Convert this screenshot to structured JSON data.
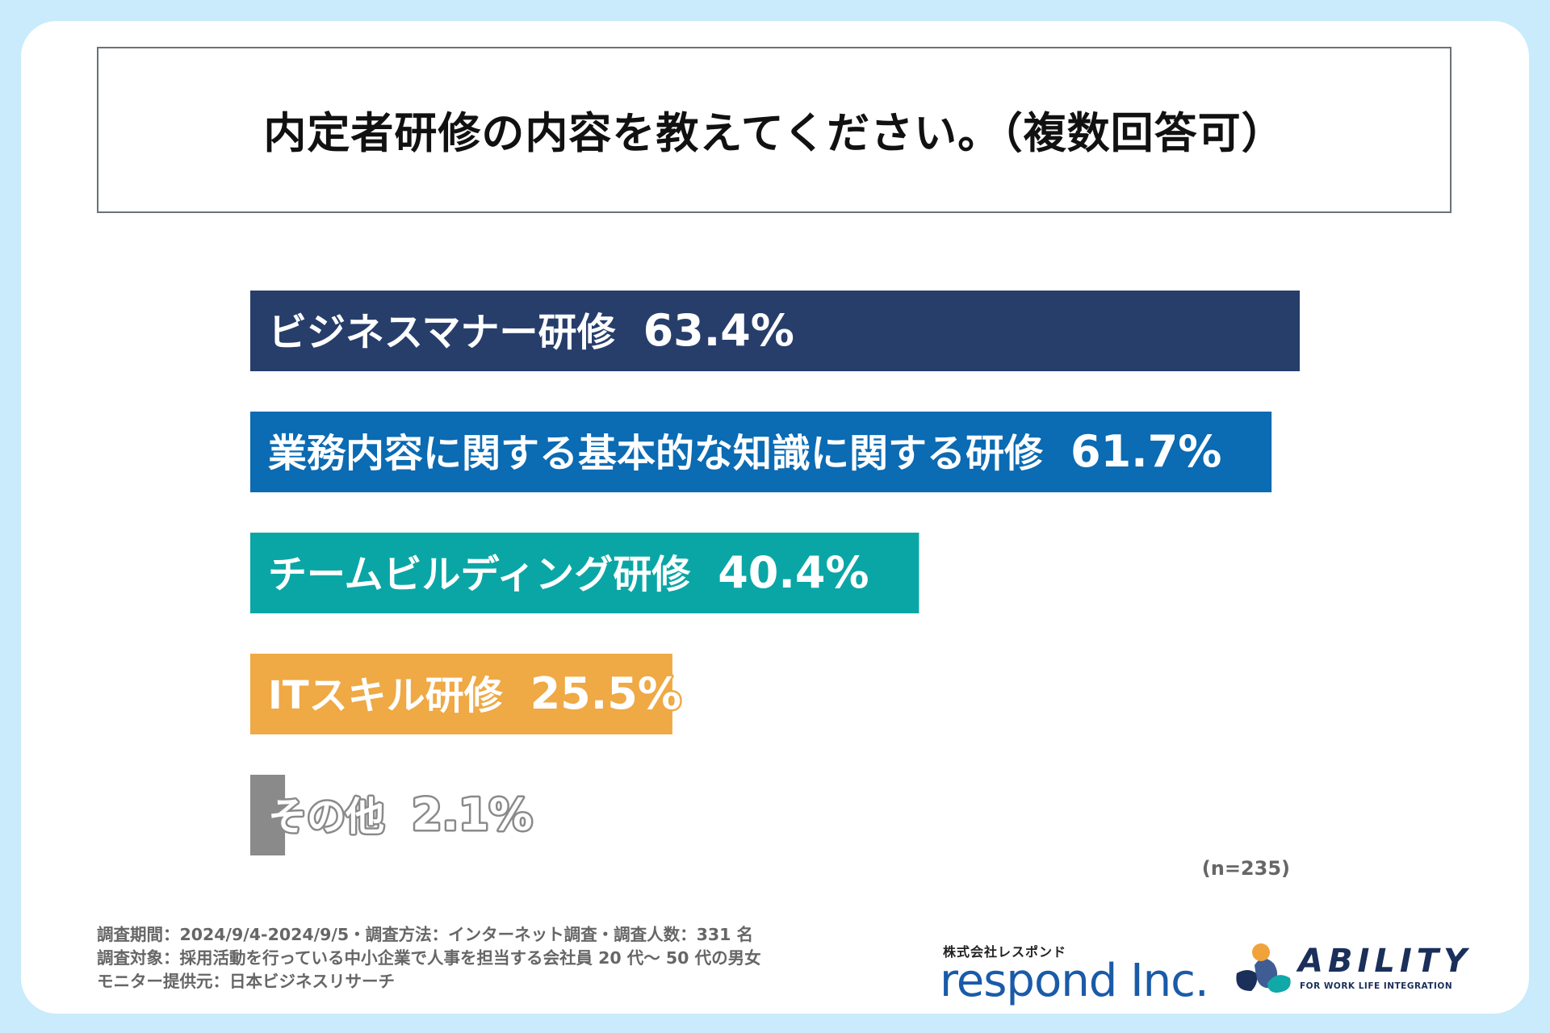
{
  "title": "内定者研修の内容を教えてください。（複数回答可）",
  "chart_data": {
    "type": "bar",
    "orientation": "horizontal",
    "title": "内定者研修の内容を教えてください。（複数回答可）",
    "categories": [
      "ビジネスマナー研修",
      "業務内容に関する基本的な知識に関する研修",
      "チームビルディング研修",
      "ITスキル研修",
      "その他"
    ],
    "values": [
      63.4,
      61.7,
      40.4,
      25.5,
      2.1
    ],
    "value_labels": [
      "63.4%",
      "61.7%",
      "40.4%",
      "25.5%",
      "2.1%"
    ],
    "colors": [
      "#273e6b",
      "#0b6bb3",
      "#0aa6a6",
      "#efa945",
      "#8a8a8a"
    ],
    "unit": "%",
    "xlim": [
      0,
      63.4
    ],
    "note": "(n=235)"
  },
  "footnotes": [
    "調査期間：2024/9/4-2024/9/5・調査方法：インターネット調査・調査人数：331 名",
    "調査対象：採用活動を行っている中小企業で人事を担当する会社員 20 代～ 50 代の男女",
    "モニター提供元：日本ビジネスリサーチ"
  ],
  "logos": {
    "respond_sub": "株式会社レスポンド",
    "respond_main": "respond Inc.",
    "ability_name": "ABILITY",
    "ability_tagline": "FOR WORK LIFE INTEGRATION"
  },
  "colors": {
    "background": "#c9ebfb",
    "card": "#ffffff",
    "brand_navy": "#1a2f5a",
    "brand_blue": "#1a5ba8"
  }
}
